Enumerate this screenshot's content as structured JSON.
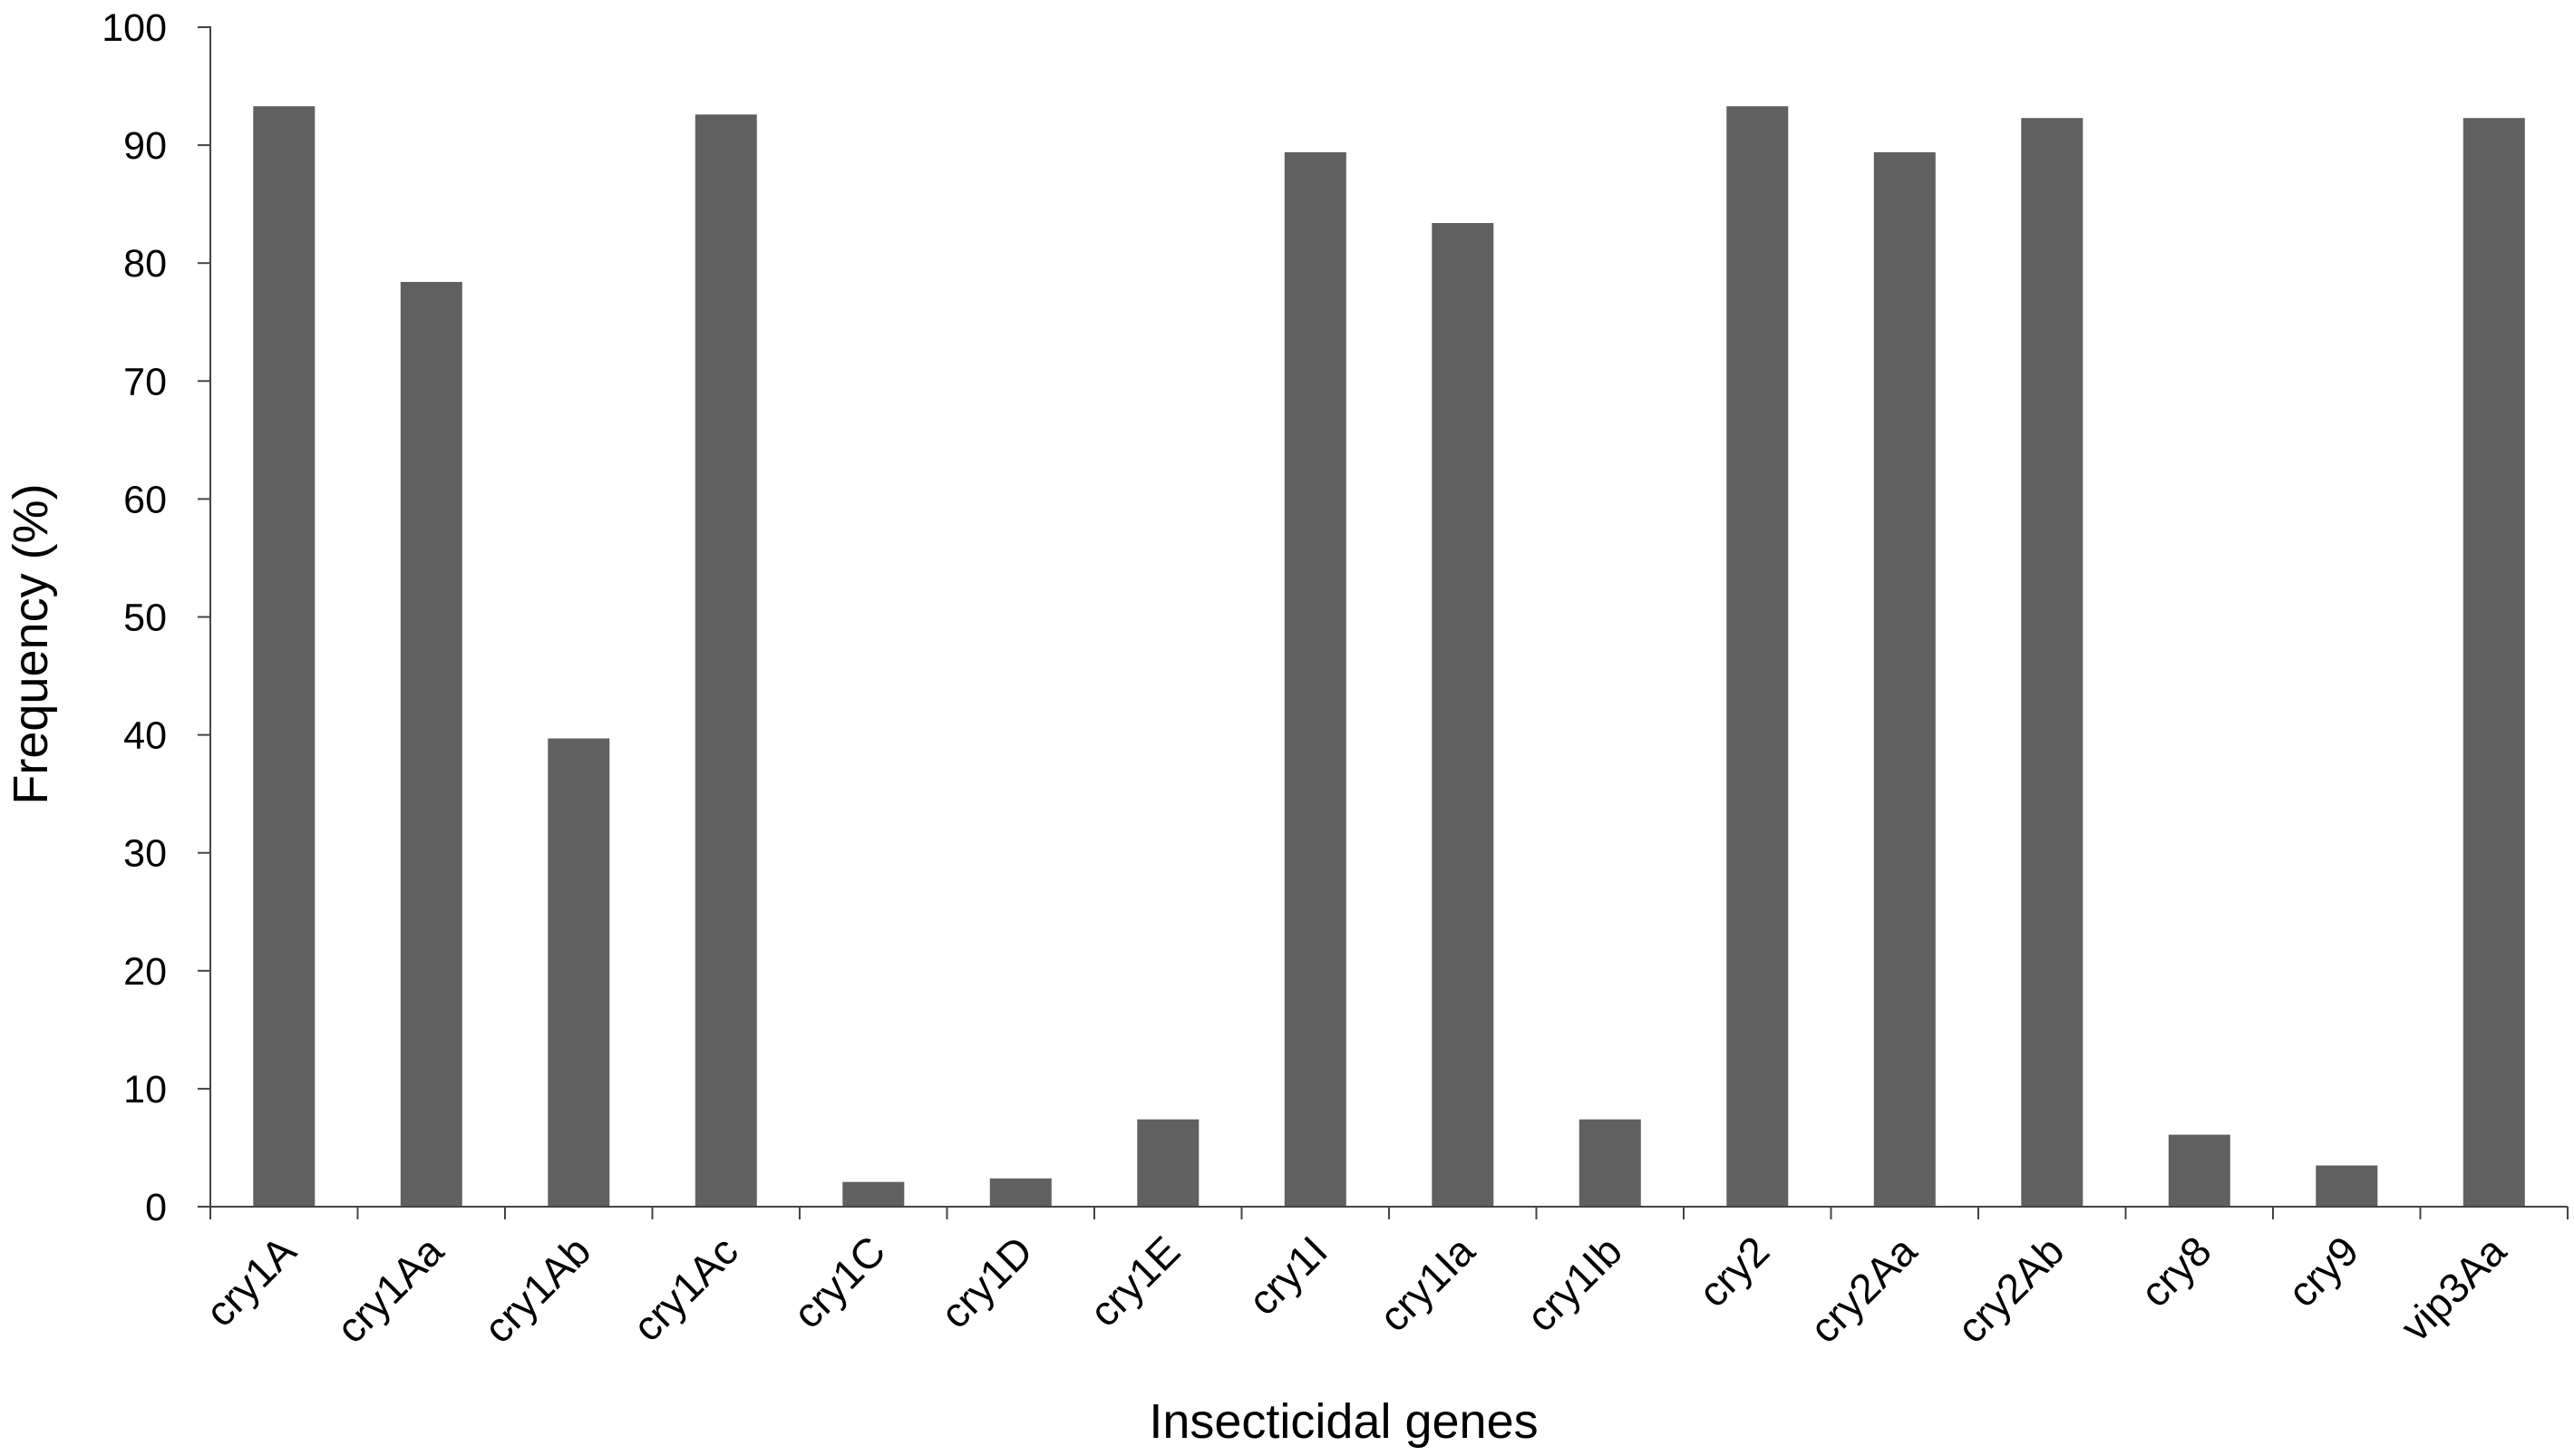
{
  "chart_data": {
    "type": "bar",
    "xlabel": "Insecticidal genes",
    "ylabel": "Frequency (%)",
    "ylim": [
      0,
      100
    ],
    "yticks": [
      0,
      10,
      20,
      30,
      40,
      50,
      60,
      70,
      80,
      90,
      100
    ],
    "grid": false,
    "legend": "none",
    "bar_color": "#606060",
    "categories": [
      "cry1A",
      "cry1Aa",
      "cry1Ab",
      "cry1Ac",
      "cry1C",
      "cry1D",
      "cry1E",
      "cry1I",
      "cry1Ia",
      "cry1Ib",
      "cry2",
      "cry2Aa",
      "cry2Ab",
      "cry8",
      "cry9",
      "vip3Aa"
    ],
    "values": [
      93.3,
      78.4,
      39.7,
      92.6,
      2.1,
      2.4,
      7.4,
      89.4,
      83.4,
      7.4,
      93.3,
      89.4,
      92.3,
      6.1,
      3.5,
      92.3
    ]
  }
}
